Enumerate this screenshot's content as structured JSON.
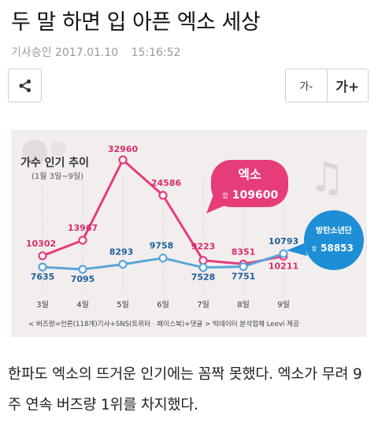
{
  "article": {
    "headline": "두 말 하면 입 아픈 엑소 세상",
    "source": "기사승인",
    "date": "2017.01.10",
    "time": "15:16:52",
    "body": "한파도 엑소의 뜨거운 인기에는 꼼짝 못했다. 엑소가 무려 9주 연속 버즈량 1위를 차지했다."
  },
  "toolbar": {
    "share_icon": "share-icon",
    "font_decrease_label": "가-",
    "font_increase_label": "가+"
  },
  "colors": {
    "exo_line": "#e63c7a",
    "bts_line": "#5aa6d8",
    "bts_badge": "#1e8fd6",
    "figure_bg": "#f3eeee"
  },
  "chart_data": {
    "type": "line",
    "title": "가수 인기 추이",
    "subtitle": "(1월 3일~9일)",
    "categories": [
      "3일",
      "4일",
      "5일",
      "6일",
      "7일",
      "8일",
      "9일"
    ],
    "series": [
      {
        "name": "엑소",
        "values": [
          10302,
          13967,
          32960,
          24586,
          9223,
          8351,
          10211
        ]
      },
      {
        "name": "방탄소년단",
        "values": [
          7635,
          7095,
          8293,
          9758,
          7528,
          7751,
          10793
        ]
      }
    ],
    "callouts": [
      {
        "name": "엑소",
        "total_label": "합",
        "total": "109600"
      },
      {
        "name": "방탄소년단",
        "total_label": "합",
        "total": "58853"
      }
    ],
    "footnote": "< 버즈량=언론(118개)기사+SNS(트위터 · 페이스북)+댓글 >  빅데이터 분석업체 Leevi 제공",
    "grid": false,
    "legend": "callout badges"
  }
}
